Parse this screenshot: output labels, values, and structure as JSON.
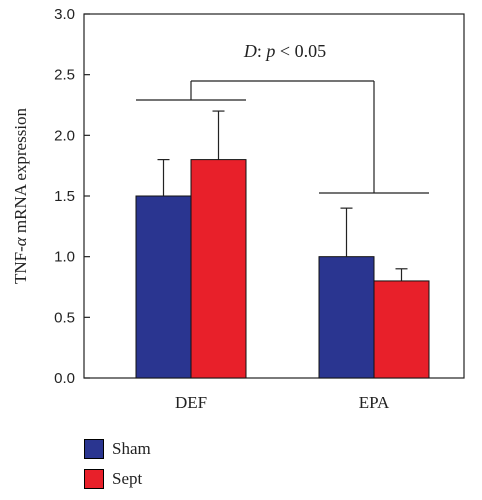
{
  "chart_data": {
    "type": "bar",
    "categories": [
      "DEF",
      "EPA"
    ],
    "series": [
      {
        "name": "Sham",
        "values": [
          1.5,
          1.0
        ],
        "errors": [
          0.3,
          0.4
        ],
        "color": "#2a3590"
      },
      {
        "name": "Sept",
        "values": [
          1.8,
          0.8
        ],
        "errors": [
          0.4,
          0.1
        ],
        "color": "#e8202a"
      }
    ],
    "ylabel_pre": "TNF-",
    "ylabel_greek": "α",
    "ylabel_post": " mRNA expression",
    "ylim": [
      0,
      3.0
    ],
    "yticks": [
      "0.0",
      "0.5",
      "1.0",
      "1.5",
      "2.0",
      "2.5",
      "3.0"
    ],
    "annotation": {
      "italic_a": "D",
      "colon": ": ",
      "italic_b": "p",
      "rest": " < 0.05"
    },
    "grid": false,
    "legend_position": "bottom-left"
  }
}
